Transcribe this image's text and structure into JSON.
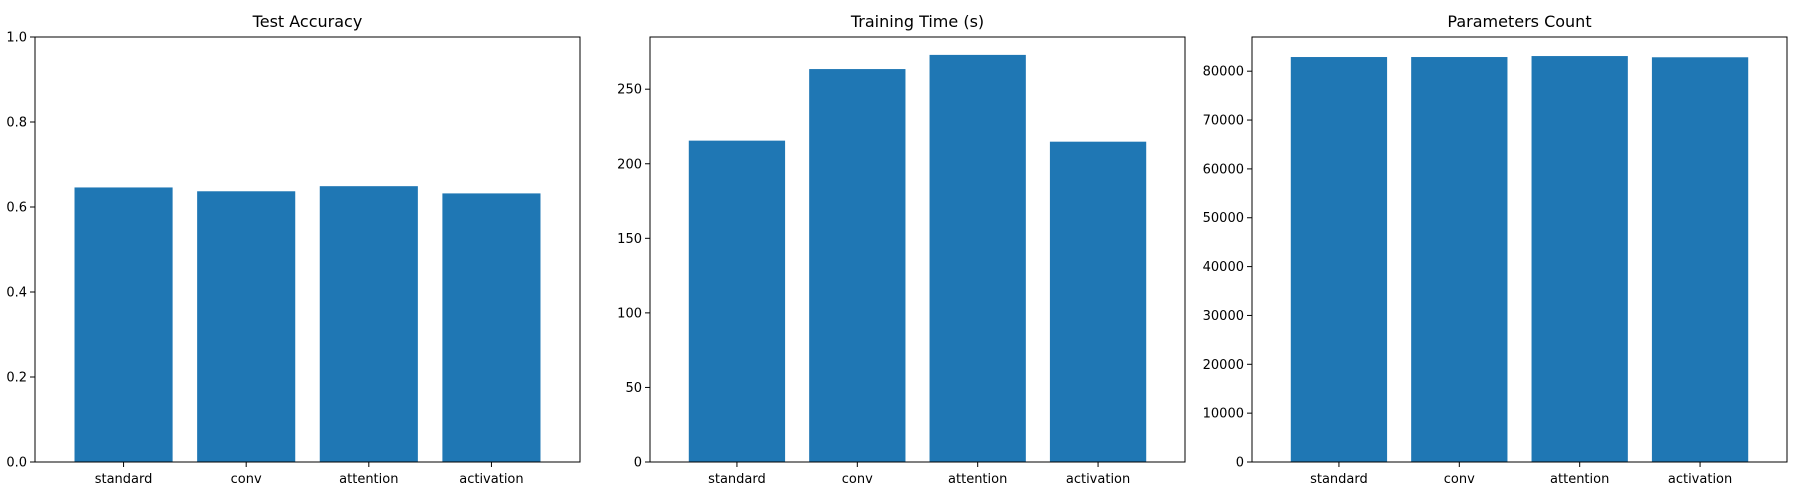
{
  "chart_data": [
    {
      "type": "bar",
      "title": "Test Accuracy",
      "xlabel": "",
      "ylabel": "",
      "categories": [
        "standard",
        "conv",
        "attention",
        "activation"
      ],
      "values": [
        0.646,
        0.637,
        0.649,
        0.632
      ],
      "ylim": [
        0,
        1
      ],
      "yticks": [
        "0.0",
        "0.2",
        "0.4",
        "0.6",
        "0.8",
        "1.0"
      ],
      "bar_color": "#1f77b4",
      "grid": false,
      "legend": "none"
    },
    {
      "type": "bar",
      "title": "Training Time (s)",
      "xlabel": "",
      "ylabel": "",
      "categories": [
        "standard",
        "conv",
        "attention",
        "activation"
      ],
      "values": [
        215.5,
        263.5,
        273.0,
        214.8
      ],
      "ylim": [
        0,
        285
      ],
      "yticks": [
        "0",
        "50",
        "100",
        "150",
        "200",
        "250"
      ],
      "bar_color": "#1f77b4",
      "grid": false,
      "legend": "none"
    },
    {
      "type": "bar",
      "title": "Parameters Count",
      "xlabel": "",
      "ylabel": "",
      "categories": [
        "standard",
        "conv",
        "attention",
        "activation"
      ],
      "values": [
        82900,
        82900,
        83100,
        82850
      ],
      "ylim": [
        0,
        87000
      ],
      "yticks": [
        "0",
        "10000",
        "20000",
        "30000",
        "40000",
        "50000",
        "60000",
        "70000",
        "80000"
      ],
      "bar_color": "#1f77b4",
      "grid": false,
      "legend": "none"
    }
  ]
}
